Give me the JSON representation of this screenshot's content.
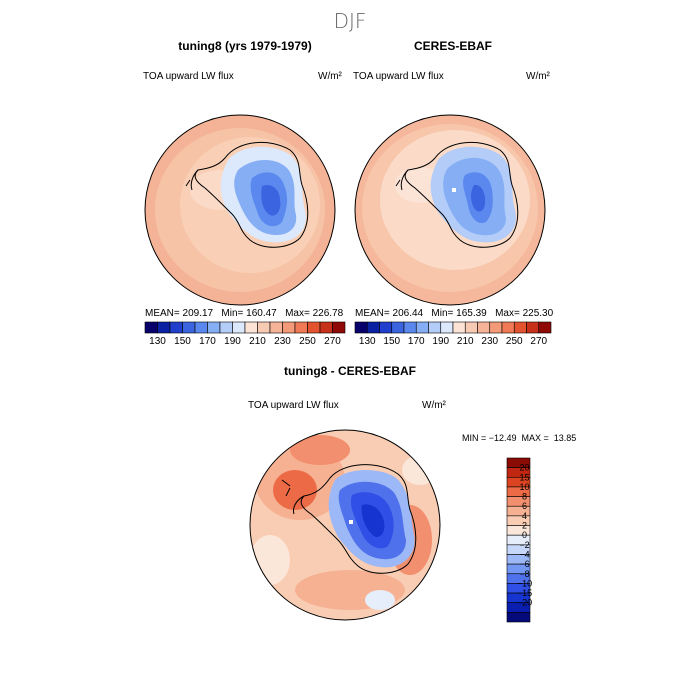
{
  "page": {
    "title": "DJF"
  },
  "colors": {
    "coast": "#000000",
    "panel_scale": [
      "#08006b",
      "#0b21a3",
      "#1f3fcc",
      "#3a64e0",
      "#5a88ee",
      "#85aef5",
      "#b3ccf8",
      "#dce8fb",
      "#fbe3d6",
      "#f7cbb3",
      "#f5b397",
      "#f49a79",
      "#f07a55",
      "#e4532f",
      "#c7311a",
      "#8f0a07"
    ],
    "diff_scale": [
      "#040a7a",
      "#0a1fb0",
      "#1634cf",
      "#2f4fe6",
      "#4f72ec",
      "#7397f2",
      "#9cb8f6",
      "#c6d7f9",
      "#e7eefb",
      "#fbe6da",
      "#f8cdb4",
      "#f6b193",
      "#f28f6f",
      "#ec6a46",
      "#dc4421",
      "#bf2712",
      "#8b0c05"
    ]
  },
  "chart_data": [
    {
      "type": "heatmap",
      "projection": "south-polar-stereographic",
      "title": "tuning8 (yrs 1979-1979)",
      "variable": "TOA upward LW flux",
      "units": "W/m²",
      "stats": {
        "mean": 209.17,
        "min": 160.47,
        "max": 226.78
      },
      "stats_text": "MEAN= 209.17   Min= 160.47   Max= 226.78",
      "colorbar": {
        "orientation": "horizontal",
        "levels": [
          130,
          140,
          150,
          160,
          170,
          180,
          190,
          200,
          210,
          220,
          230,
          240,
          250,
          260,
          270
        ],
        "tick_labels": [
          "130",
          "150",
          "170",
          "190",
          "210",
          "230",
          "250",
          "270"
        ]
      }
    },
    {
      "type": "heatmap",
      "projection": "south-polar-stereographic",
      "title": "CERES-EBAF",
      "variable": "TOA upward LW flux",
      "units": "W/m²",
      "stats": {
        "mean": 206.44,
        "min": 165.39,
        "max": 225.3
      },
      "stats_text": "MEAN= 206.44   Min= 165.39   Max= 225.30",
      "colorbar": {
        "orientation": "horizontal",
        "levels": [
          130,
          140,
          150,
          160,
          170,
          180,
          190,
          200,
          210,
          220,
          230,
          240,
          250,
          260,
          270
        ],
        "tick_labels": [
          "130",
          "150",
          "170",
          "190",
          "210",
          "230",
          "250",
          "270"
        ]
      }
    },
    {
      "type": "heatmap",
      "projection": "south-polar-stereographic",
      "title": "tuning8 - CERES-EBAF",
      "variable": "TOA upward LW flux",
      "units": "W/m²",
      "stats": {
        "min": -12.49,
        "max": 13.85
      },
      "stats_text": "MIN = −12.49  MAX =  13.85",
      "colorbar": {
        "orientation": "vertical",
        "levels": [
          -20,
          -15,
          -10,
          -8,
          -6,
          -4,
          -2,
          0,
          2,
          4,
          6,
          8,
          10,
          15,
          20
        ],
        "tick_labels": [
          "20",
          "15",
          "10",
          "8",
          "6",
          "4",
          "2",
          "0",
          "−2",
          "−4",
          "−6",
          "−8",
          "−10",
          "−15",
          "−20"
        ]
      }
    }
  ]
}
